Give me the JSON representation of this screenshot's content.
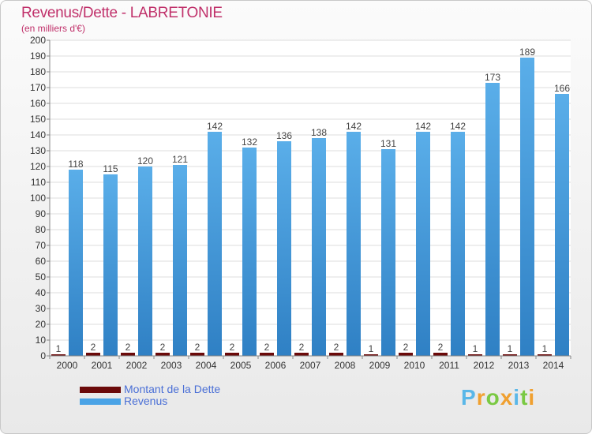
{
  "header": {
    "title": "Revenus/Dette - LABRETONIE",
    "subtitle": "(en milliers d'€)"
  },
  "chart_data": {
    "type": "bar",
    "title": "Revenus/Dette - LABRETONIE",
    "ylabel": "(en milliers d'€)",
    "xlabel": "",
    "categories": [
      "2000",
      "2001",
      "2002",
      "2003",
      "2004",
      "2005",
      "2006",
      "2007",
      "2008",
      "2009",
      "2010",
      "2011",
      "2012",
      "2013",
      "2014"
    ],
    "series": [
      {
        "name": "Montant de la Dette",
        "color": "#6b0a0a",
        "values": [
          1,
          2,
          2,
          2,
          2,
          2,
          2,
          2,
          2,
          1,
          2,
          2,
          1,
          1,
          1
        ]
      },
      {
        "name": "Revenus",
        "color": "#4aa3e6",
        "values": [
          118,
          115,
          120,
          121,
          142,
          132,
          136,
          138,
          142,
          131,
          142,
          142,
          173,
          189,
          166
        ]
      }
    ],
    "ylim": [
      0,
      200
    ],
    "yticks": [
      0,
      10,
      20,
      30,
      40,
      50,
      60,
      70,
      80,
      90,
      100,
      110,
      120,
      130,
      140,
      150,
      160,
      170,
      180,
      190,
      200
    ],
    "grid": true,
    "legend": "bottom-left"
  },
  "legend": {
    "items": [
      {
        "label": "Montant de la Dette",
        "color": "#6b0a0a"
      },
      {
        "label": "Revenus",
        "color": "#4aa3e6"
      }
    ]
  },
  "logo": {
    "letters": [
      "P",
      "r",
      "o",
      "x",
      "i",
      "t",
      "i"
    ],
    "colors": [
      "#5ab7e8",
      "#f0a030",
      "#7ac943",
      "#f0a030",
      "#5ab7e8",
      "#7ac943",
      "#f0a030"
    ]
  }
}
